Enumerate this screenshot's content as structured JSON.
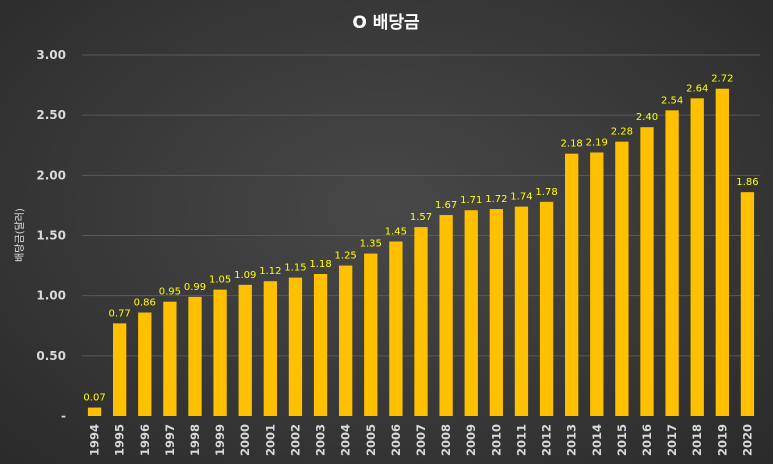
{
  "chart_data": {
    "type": "bar",
    "title": "O 배당금",
    "ylabel": "배당금(달러)",
    "xlabel": "",
    "ylim": [
      0,
      3.0
    ],
    "yticks": [
      "-",
      "0.50",
      "1.00",
      "1.50",
      "2.00",
      "2.50",
      "3.00"
    ],
    "ytick_values": [
      0,
      0.5,
      1.0,
      1.5,
      2.0,
      2.5,
      3.0
    ],
    "grid": true,
    "legend": "none",
    "bar_color": "#ffc000",
    "label_color": "#ffff00",
    "categories": [
      "1994",
      "1995",
      "1996",
      "1997",
      "1998",
      "1999",
      "2000",
      "2001",
      "2002",
      "2003",
      "2004",
      "2005",
      "2006",
      "2007",
      "2008",
      "2009",
      "2010",
      "2011",
      "2012",
      "2013",
      "2014",
      "2015",
      "2016",
      "2017",
      "2018",
      "2019",
      "2020"
    ],
    "values": [
      0.07,
      0.77,
      0.86,
      0.95,
      0.99,
      1.05,
      1.09,
      1.12,
      1.15,
      1.18,
      1.25,
      1.35,
      1.45,
      1.57,
      1.67,
      1.71,
      1.72,
      1.74,
      1.78,
      2.18,
      2.19,
      2.28,
      2.4,
      2.54,
      2.64,
      2.72,
      1.86
    ],
    "labels": [
      "0.07",
      "0.77",
      "0.86",
      "0.95",
      "0.99",
      "1.05",
      "1.09",
      "1.12",
      "1.15",
      "1.18",
      "1.25",
      "1.35",
      "1.45",
      "1.57",
      "1.67",
      "1.71",
      "1.72",
      "1.74",
      "1.78",
      "2.18",
      "2.19",
      "2.28",
      "2.40",
      "2.54",
      "2.64",
      "2.72",
      "1.86"
    ]
  }
}
